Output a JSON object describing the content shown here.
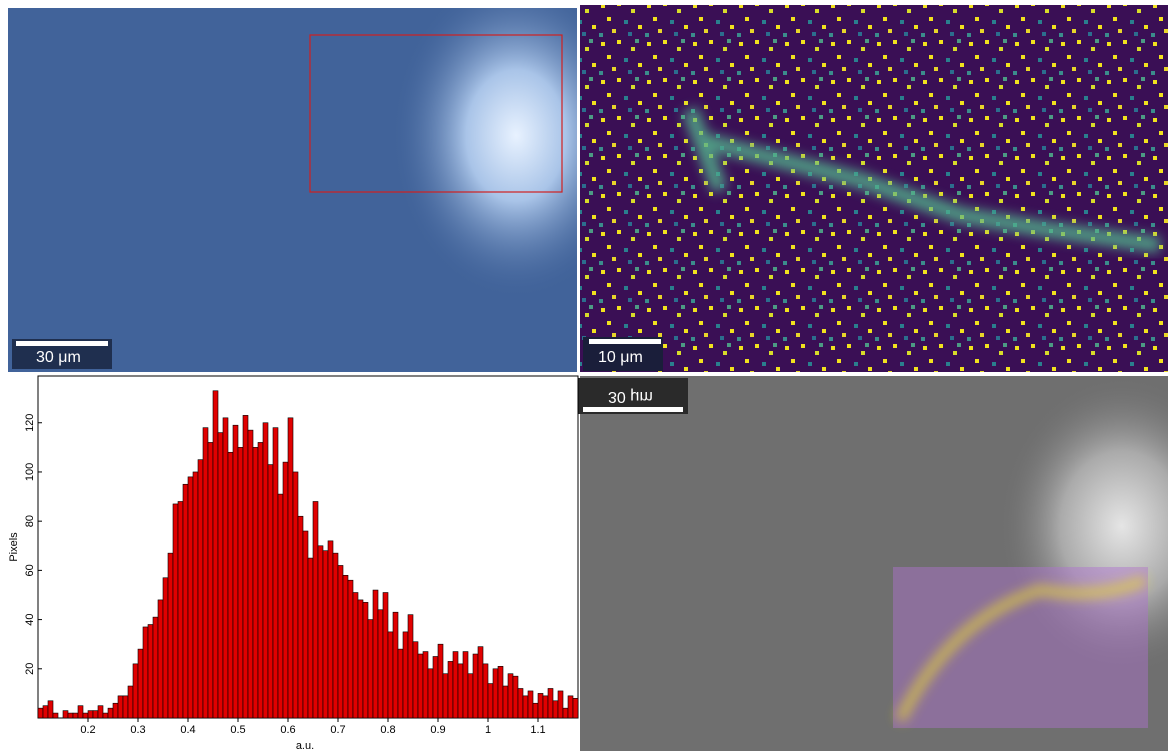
{
  "panels": {
    "optical": {
      "scale_bar": "30 μm"
    },
    "map": {
      "scale_bar": "10 μm"
    },
    "overlay": {
      "scale_bar": "30 μm"
    }
  },
  "chart_data": {
    "type": "histogram",
    "ylabel": "Pixels",
    "xlabel": "a.u.",
    "color": "#e00000",
    "bins": [
      0.1,
      0.11,
      0.12,
      0.13,
      0.14,
      0.15,
      0.16,
      0.17,
      0.18,
      0.19,
      0.2,
      0.21,
      0.22,
      0.23,
      0.24,
      0.25,
      0.26,
      0.27,
      0.28,
      0.29,
      0.3,
      0.31,
      0.32,
      0.33,
      0.34,
      0.35,
      0.36,
      0.37,
      0.38,
      0.39,
      0.4,
      0.41,
      0.42,
      0.43,
      0.44,
      0.45,
      0.46,
      0.47,
      0.48,
      0.49,
      0.5,
      0.51,
      0.52,
      0.53,
      0.54,
      0.55,
      0.56,
      0.57,
      0.58,
      0.59,
      0.6,
      0.61,
      0.62,
      0.63,
      0.64,
      0.65,
      0.66,
      0.67,
      0.68,
      0.69,
      0.7,
      0.71,
      0.72,
      0.73,
      0.74,
      0.75,
      0.76,
      0.77,
      0.78,
      0.79,
      0.8,
      0.81,
      0.82,
      0.83,
      0.84,
      0.85,
      0.86,
      0.87,
      0.88,
      0.89,
      0.9,
      0.91,
      0.92,
      0.93,
      0.94,
      0.95,
      0.96,
      0.97,
      0.98,
      0.99,
      1.0,
      1.01,
      1.02,
      1.03,
      1.04,
      1.05,
      1.06,
      1.07,
      1.08,
      1.09,
      1.1,
      1.11,
      1.12,
      1.13,
      1.14,
      1.15,
      1.16,
      1.17,
      1.18
    ],
    "values": [
      4,
      5,
      7,
      2,
      0,
      3,
      2,
      2,
      5,
      2,
      3,
      3,
      5,
      2,
      4,
      6,
      9,
      9,
      13,
      22,
      28,
      37,
      38,
      41,
      48,
      57,
      67,
      87,
      88,
      95,
      98,
      100,
      105,
      118,
      112,
      133,
      116,
      122,
      108,
      119,
      110,
      123,
      117,
      110,
      112,
      120,
      103,
      118,
      91,
      104,
      122,
      100,
      82,
      76,
      65,
      88,
      70,
      68,
      72,
      67,
      62,
      58,
      56,
      51,
      48,
      47,
      40,
      52,
      44,
      51,
      35,
      43,
      28,
      35,
      42,
      31,
      26,
      27,
      20,
      25,
      30,
      18,
      23,
      27,
      22,
      27,
      18,
      26,
      29,
      22,
      14,
      20,
      21,
      13,
      18,
      17,
      12,
      9,
      11,
      6,
      10,
      9,
      12,
      7,
      11,
      4,
      9,
      8
    ],
    "xlim": [
      0.1,
      1.18
    ],
    "ylim": [
      0,
      139
    ],
    "xticks": [
      0.2,
      0.3,
      0.4,
      0.5,
      0.6,
      0.7,
      0.8,
      0.9,
      1,
      1.1
    ],
    "yticks": [
      20,
      40,
      60,
      80,
      100,
      120
    ]
  }
}
